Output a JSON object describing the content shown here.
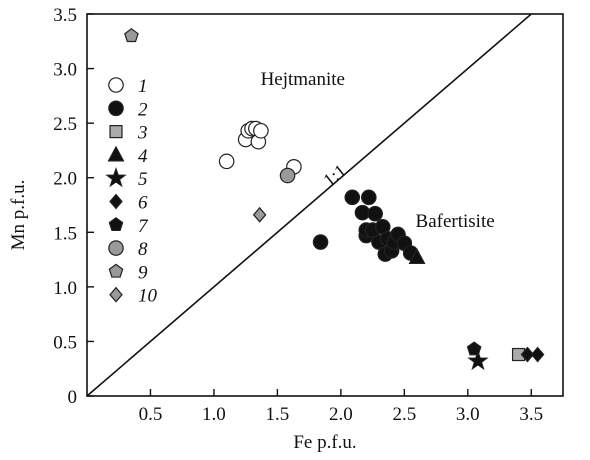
{
  "chart_data": {
    "type": "scatter",
    "title": "",
    "xlabel": "Fe p.f.u.",
    "ylabel": "Mn p.f.u.",
    "xlim": [
      0,
      3.75
    ],
    "ylim": [
      0,
      3.5
    ],
    "x_ticks": [
      0.5,
      1.0,
      1.5,
      2.0,
      2.5,
      3.0,
      3.5
    ],
    "x_tick_labels": [
      "0.5",
      "1.0",
      "1.5",
      "2.0",
      "2.5",
      "3.0",
      "3.5"
    ],
    "y_ticks": [
      0,
      0.5,
      1.0,
      1.5,
      2.0,
      2.5,
      3.0,
      3.5
    ],
    "y_tick_labels": [
      "0",
      "0.5",
      "1.0",
      "1.5",
      "2.0",
      "2.5",
      "3.0",
      "3.5"
    ],
    "grid": false,
    "legend_position": "left",
    "reference_line": {
      "label": "1:1",
      "slope": 1
    },
    "region_labels": [
      {
        "text": "Hejtmanite",
        "x": 1.7,
        "y": 2.85
      },
      {
        "text": "Bafertisite",
        "x": 2.9,
        "y": 1.55
      }
    ],
    "series": [
      {
        "name": "1",
        "marker": "circle",
        "fill": "#ffffff",
        "points": [
          [
            1.1,
            2.15
          ],
          [
            1.25,
            2.35
          ],
          [
            1.27,
            2.43
          ],
          [
            1.3,
            2.45
          ],
          [
            1.33,
            2.45
          ],
          [
            1.35,
            2.33
          ],
          [
            1.37,
            2.43
          ],
          [
            1.63,
            2.1
          ]
        ]
      },
      {
        "name": "2",
        "marker": "circle",
        "fill": "#111111",
        "points": [
          [
            1.84,
            1.41
          ],
          [
            2.09,
            1.82
          ],
          [
            2.17,
            1.68
          ],
          [
            2.2,
            1.47
          ],
          [
            2.22,
            1.82
          ],
          [
            2.2,
            1.52
          ],
          [
            2.25,
            1.52
          ],
          [
            2.27,
            1.67
          ],
          [
            2.3,
            1.41
          ],
          [
            2.33,
            1.55
          ],
          [
            2.35,
            1.3
          ],
          [
            2.37,
            1.44
          ],
          [
            2.4,
            1.33
          ],
          [
            2.42,
            1.41
          ],
          [
            2.45,
            1.48
          ],
          [
            2.5,
            1.4
          ],
          [
            2.55,
            1.31
          ]
        ]
      },
      {
        "name": "3",
        "marker": "square",
        "fill": "#aaaaaa",
        "points": [
          [
            3.4,
            0.38
          ]
        ]
      },
      {
        "name": "4",
        "marker": "triangle",
        "fill": "#111111",
        "points": [
          [
            2.6,
            1.27
          ]
        ]
      },
      {
        "name": "5",
        "marker": "star",
        "fill": "#111111",
        "points": [
          [
            3.08,
            0.32
          ]
        ]
      },
      {
        "name": "6",
        "marker": "diamond",
        "fill": "#111111",
        "points": [
          [
            3.47,
            0.38
          ],
          [
            3.55,
            0.38
          ]
        ]
      },
      {
        "name": "7",
        "marker": "pentagon",
        "fill": "#111111",
        "points": [
          [
            3.05,
            0.43
          ]
        ]
      },
      {
        "name": "8",
        "marker": "circle",
        "fill": "#999999",
        "points": [
          [
            1.58,
            2.02
          ]
        ]
      },
      {
        "name": "9",
        "marker": "pentagon",
        "fill": "#999999",
        "points": [
          [
            0.35,
            3.3
          ]
        ]
      },
      {
        "name": "10",
        "marker": "diamond",
        "fill": "#999999",
        "points": [
          [
            1.36,
            1.66
          ]
        ]
      }
    ]
  }
}
